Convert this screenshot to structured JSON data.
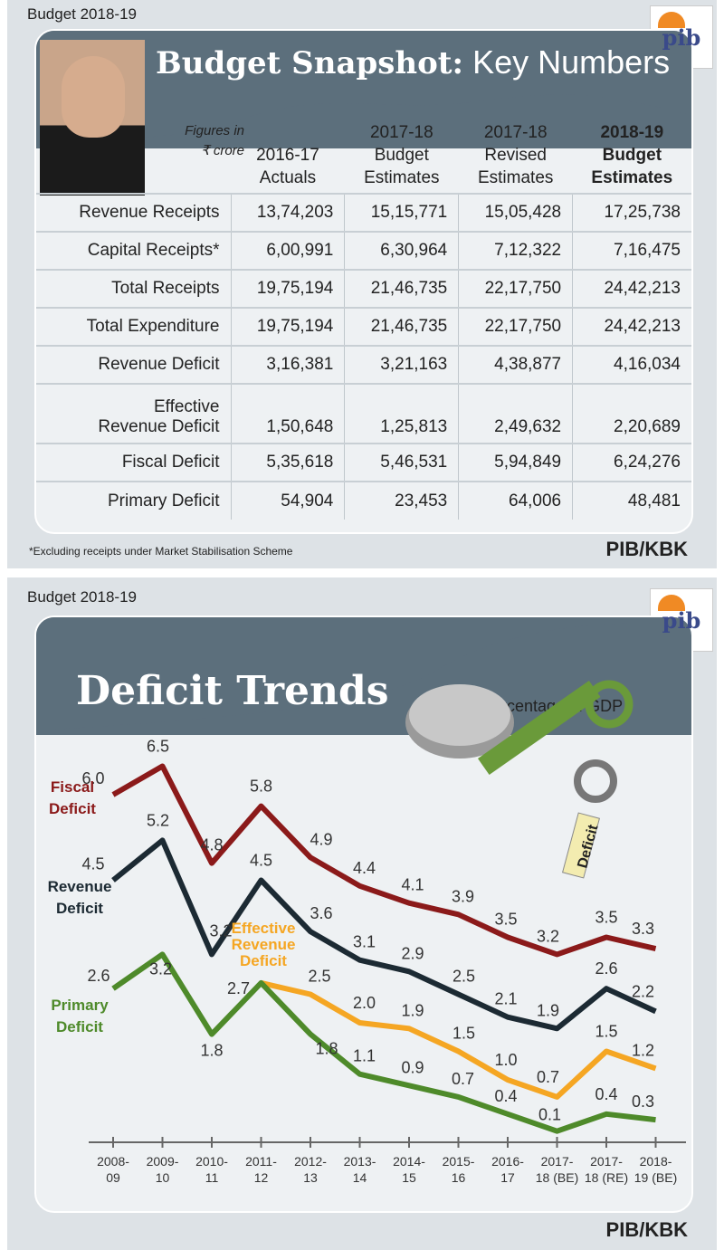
{
  "top": {
    "kicker": "Budget 2018-19",
    "logo": "pib",
    "title_bold": "Budget Snapshot:",
    "title_rest": " Key Numbers",
    "units_line1": "Figures in",
    "units_line2": "₹ crore",
    "columns": [
      [
        "2016-17",
        "Actuals"
      ],
      [
        "2017-18",
        "Budget",
        "Estimates"
      ],
      [
        "2017-18",
        "Revised",
        "Estimates"
      ],
      [
        "2018-19",
        "Budget",
        "Estimates"
      ]
    ],
    "rows": [
      {
        "label": "Revenue Receipts",
        "values": [
          "13,74,203",
          "15,15,771",
          "15,05,428",
          "17,25,738"
        ]
      },
      {
        "label": "Capital Receipts*",
        "values": [
          "6,00,991",
          "6,30,964",
          "7,12,322",
          "7,16,475"
        ]
      },
      {
        "label": "Total Receipts",
        "values": [
          "19,75,194",
          "21,46,735",
          "22,17,750",
          "24,42,213"
        ]
      },
      {
        "label": "Total Expenditure",
        "values": [
          "19,75,194",
          "21,46,735",
          "22,17,750",
          "24,42,213"
        ]
      },
      {
        "label": "Revenue Deficit",
        "values": [
          "3,16,381",
          "3,21,163",
          "4,38,877",
          "4,16,034"
        ]
      },
      {
        "label": "Effective Revenue Deficit",
        "label1": "Effective",
        "label2": "Revenue Deficit",
        "values": [
          "1,50,648",
          "1,25,813",
          "2,49,632",
          "2,20,689"
        ]
      },
      {
        "label": "Fiscal Deficit",
        "values": [
          "5,35,618",
          "5,46,531",
          "5,94,849",
          "6,24,276"
        ]
      },
      {
        "label": "Primary Deficit",
        "values": [
          "54,904",
          "23,453",
          "64,006",
          "48,481"
        ]
      }
    ],
    "footnote": "*Excluding receipts under Market Stabilisation Scheme",
    "credit": "PIB/KBK"
  },
  "bottom": {
    "kicker": "Budget 2018-19",
    "logo": "pib",
    "title": "Deficit Trends",
    "tag": "Deficit",
    "credit": "PIB/KBK"
  },
  "chart_data": {
    "type": "line",
    "subtitle": "Percentage of GDP",
    "categories": [
      [
        "2008-",
        "09"
      ],
      [
        "2009-",
        "10"
      ],
      [
        "2010-",
        "11"
      ],
      [
        "2011-",
        "12"
      ],
      [
        "2012-",
        "13"
      ],
      [
        "2013-",
        "14"
      ],
      [
        "2014-",
        "15"
      ],
      [
        "2015-",
        "16"
      ],
      [
        "2016-",
        "17"
      ],
      [
        "2017-",
        "18 (BE)"
      ],
      [
        "2017-",
        "18 (RE)"
      ],
      [
        "2018-",
        "19 (BE)"
      ]
    ],
    "ylim": [
      0,
      7
    ],
    "grid": false,
    "series": [
      {
        "name": "Fiscal Deficit",
        "color": "#8b1a1a",
        "values": [
          6.0,
          6.5,
          4.8,
          5.8,
          4.9,
          4.4,
          4.1,
          3.9,
          3.5,
          3.2,
          3.5,
          3.3
        ]
      },
      {
        "name": "Revenue Deficit",
        "color": "#1c2a33",
        "values": [
          4.5,
          5.2,
          3.2,
          4.5,
          3.6,
          3.1,
          2.9,
          2.5,
          2.1,
          1.9,
          2.6,
          2.2
        ]
      },
      {
        "name": "Effective Revenue Deficit",
        "color": "#f5a623",
        "values": [
          null,
          null,
          null,
          2.7,
          2.5,
          2.0,
          1.9,
          1.5,
          1.0,
          0.7,
          1.5,
          1.2
        ]
      },
      {
        "name": "Primary Deficit",
        "color": "#4e8a2a",
        "values": [
          2.6,
          3.2,
          1.8,
          2.7,
          1.8,
          1.1,
          0.9,
          0.7,
          0.4,
          0.1,
          0.4,
          0.3
        ]
      }
    ]
  }
}
